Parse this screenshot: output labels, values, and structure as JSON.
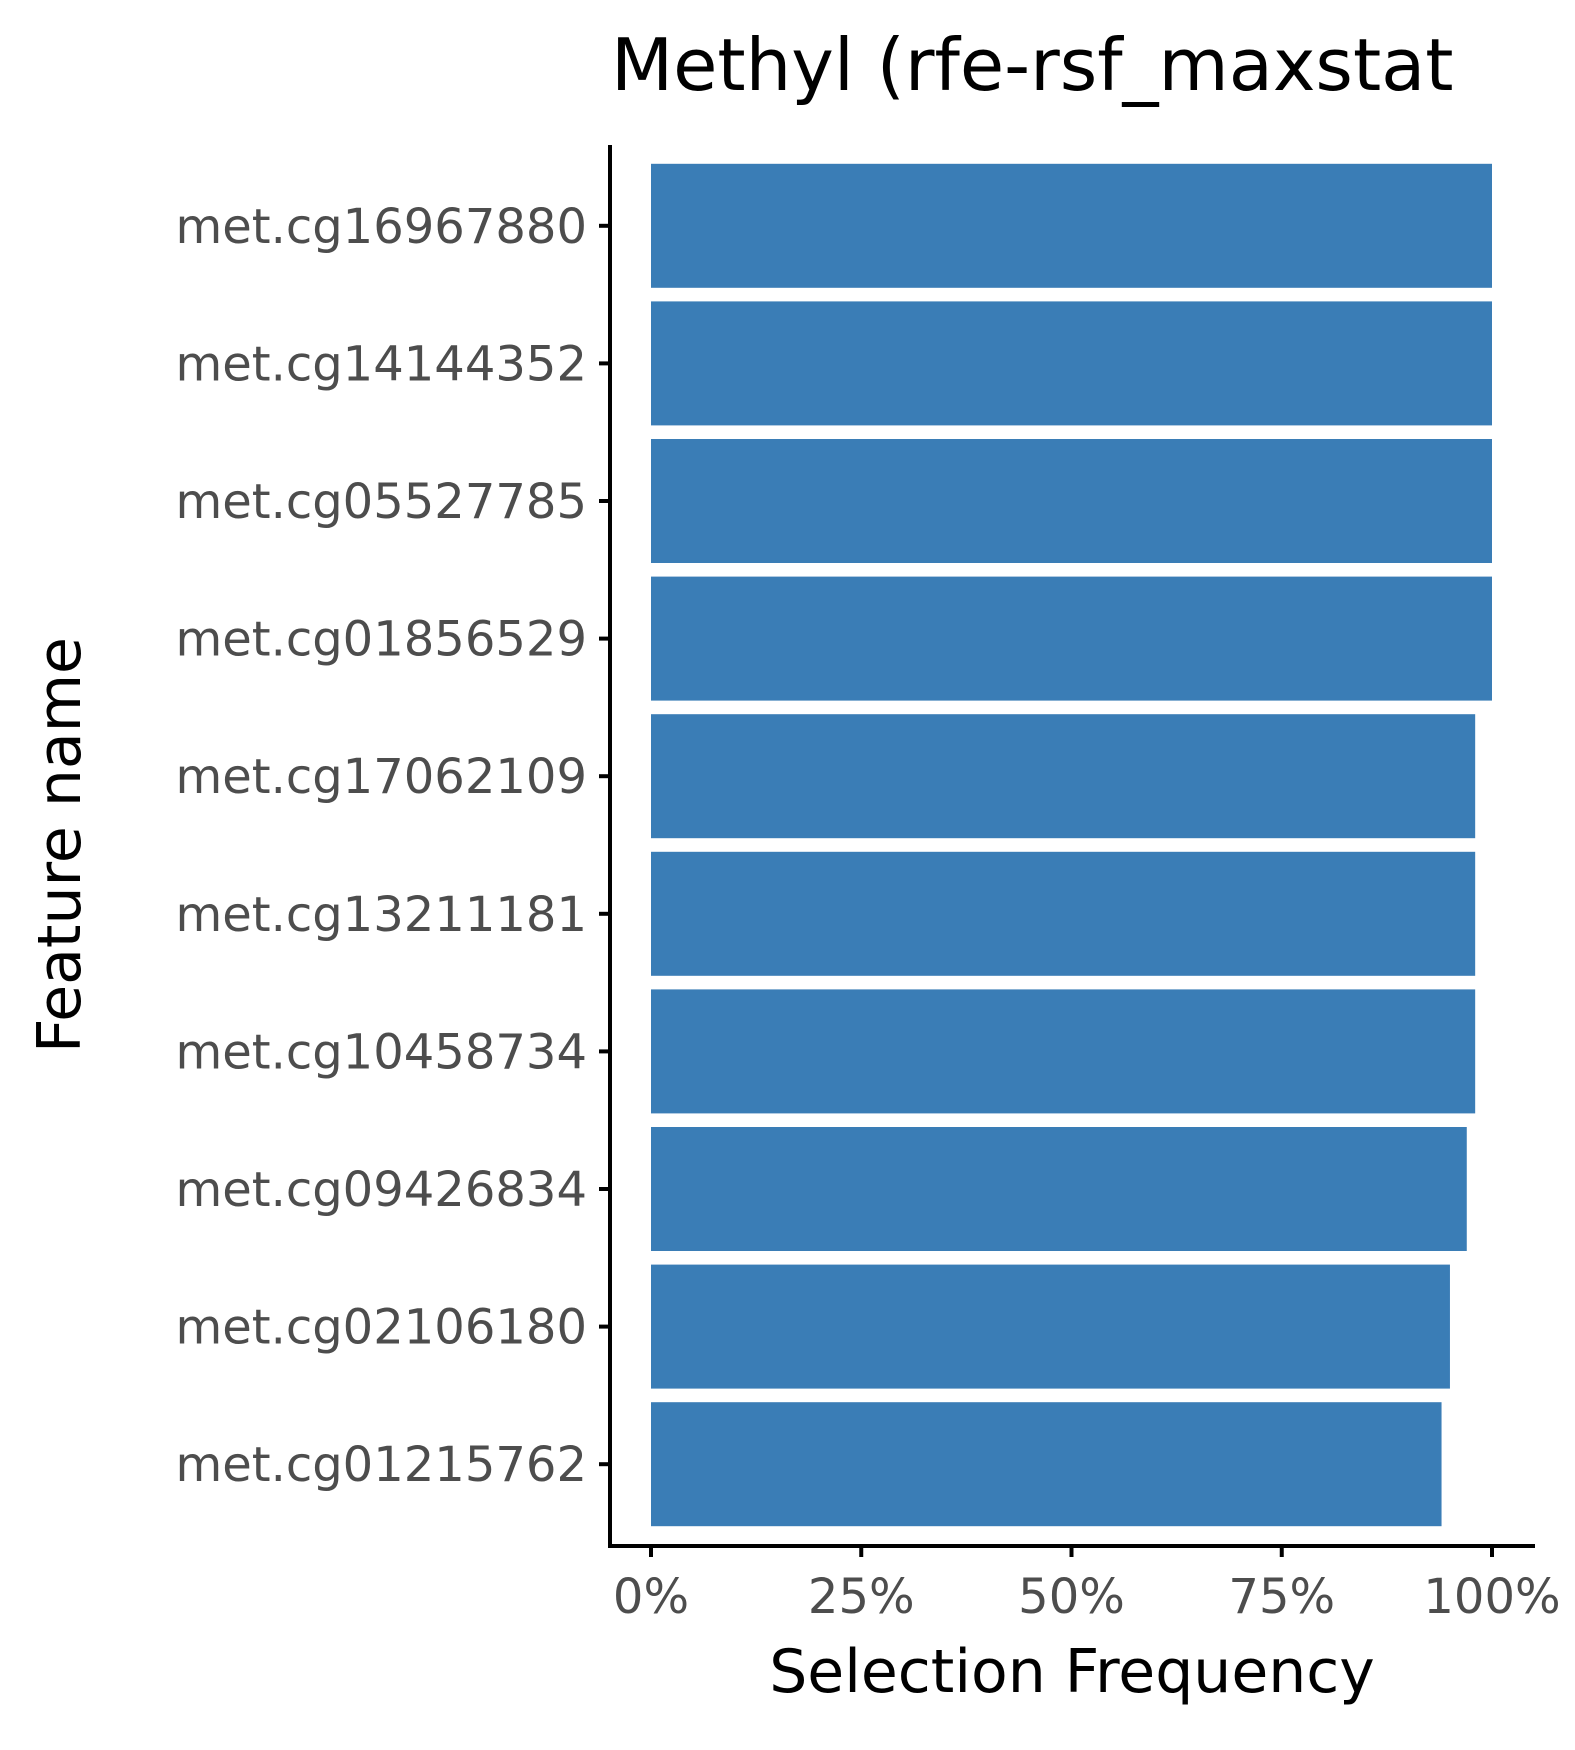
{
  "chart_data": {
    "type": "bar",
    "orientation": "horizontal",
    "title": "Methyl (rfe-rsf_maxstat",
    "xlabel": "Selection Frequency",
    "ylabel": "Feature name",
    "xlim": [
      0,
      1
    ],
    "x_ticks": [
      0,
      0.25,
      0.5,
      0.75,
      1.0
    ],
    "x_tick_labels": [
      "0%",
      "25%",
      "50%",
      "75%",
      "100%"
    ],
    "categories": [
      "met.cg16967880",
      "met.cg14144352",
      "met.cg05527785",
      "met.cg01856529",
      "met.cg17062109",
      "met.cg13211181",
      "met.cg10458734",
      "met.cg09426834",
      "met.cg02106180",
      "met.cg01215762"
    ],
    "values": [
      1.0,
      1.0,
      1.0,
      1.0,
      0.98,
      0.98,
      0.98,
      0.97,
      0.95,
      0.94
    ],
    "bar_color": "#3A7DB6",
    "grid": false
  }
}
